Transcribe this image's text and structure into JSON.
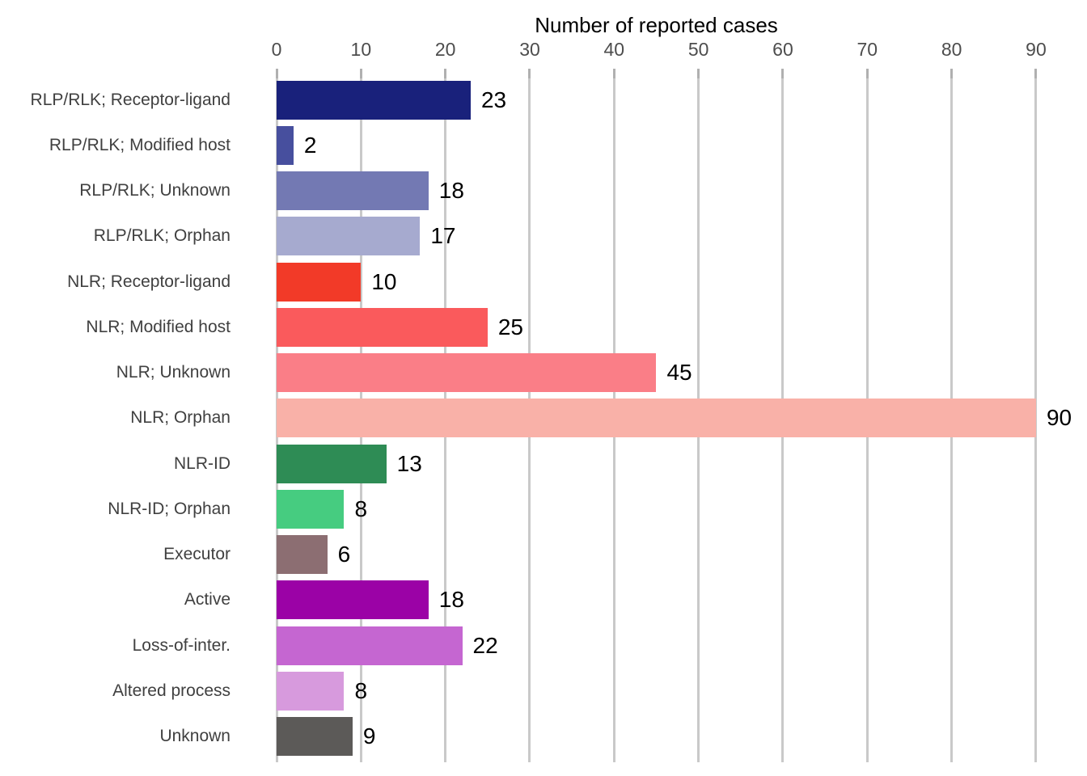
{
  "chart_data": {
    "type": "bar",
    "orientation": "horizontal",
    "title": "Number of reported cases",
    "categories": [
      "RLP/RLK; Receptor-ligand",
      "RLP/RLK; Modified host",
      "RLP/RLK; Unknown",
      "RLP/RLK; Orphan",
      "NLR; Receptor-ligand",
      "NLR; Modified host",
      "NLR; Unknown",
      "NLR; Orphan",
      "NLR-ID",
      "NLR-ID; Orphan",
      "Executor",
      "Active",
      "Loss-of-inter.",
      "Altered process",
      "Unknown"
    ],
    "values": [
      23,
      2,
      18,
      17,
      10,
      25,
      45,
      90,
      13,
      8,
      6,
      18,
      22,
      8,
      9
    ],
    "bar_colors": [
      "#19217B",
      "#474F9E",
      "#7379B3",
      "#A6AACF",
      "#F23A28",
      "#FA5A5C",
      "#FA7E87",
      "#F9B1A8",
      "#2E8C55",
      "#46CC80",
      "#8C6E72",
      "#9B02A6",
      "#C566D1",
      "#D79ADD",
      "#5C5A58"
    ],
    "value_labels_shown": true,
    "xlabel": "",
    "ylabel": "",
    "xlim": [
      0,
      90
    ],
    "xticks": [
      0,
      10,
      20,
      30,
      40,
      50,
      60,
      70,
      80,
      90
    ],
    "axis_position": "top",
    "grid": "vertical",
    "legend": "none"
  },
  "styles": {
    "background": "#FFFFFF",
    "grid_color": "#C9C9C9",
    "tick_mark_color": "#B0B0B0",
    "tick_label_color": "#4D4D4D",
    "category_label_color": "#404040",
    "value_label_color": "#000000",
    "title_color": "#000000"
  }
}
